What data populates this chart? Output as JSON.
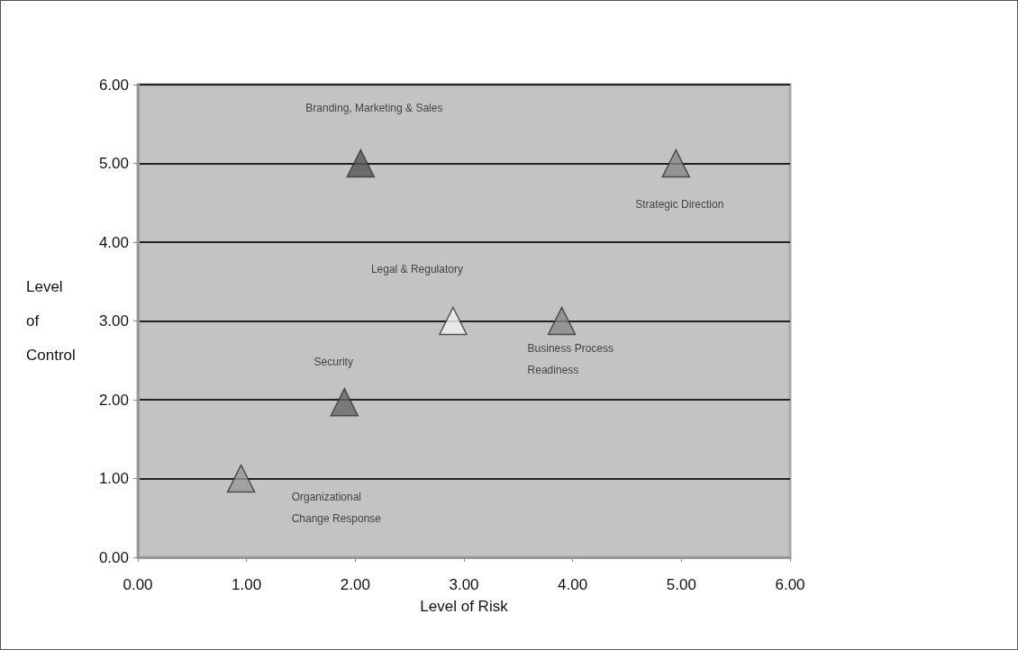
{
  "chart_data": {
    "type": "scatter",
    "xlabel": "Level of Risk",
    "ylabel": "Level of Control",
    "x": [
      2.05,
      4.95,
      2.9,
      3.9,
      1.9,
      0.95
    ],
    "values": [
      5,
      5,
      3,
      3,
      1.97,
      1
    ],
    "colors": [
      "#555555",
      "#888888",
      "#f2f2f2",
      "#888888",
      "#666666",
      "#999999"
    ],
    "marker": "triangle",
    "grid": "y",
    "xlim": [
      0,
      6
    ],
    "ylim": [
      0,
      6
    ],
    "xticks": [
      {
        "value": 0,
        "label": "0.00"
      },
      {
        "value": 1,
        "label": "1.00"
      },
      {
        "value": 2,
        "label": "2.00"
      },
      {
        "value": 3,
        "label": "3.00"
      },
      {
        "value": 4,
        "label": "4.00"
      },
      {
        "value": 5,
        "label": "5.00"
      },
      {
        "value": 6,
        "label": "6.00"
      }
    ],
    "yticks": [
      {
        "value": 0,
        "label": "0.00"
      },
      {
        "value": 1,
        "label": "1.00"
      },
      {
        "value": 2,
        "label": "2.00"
      },
      {
        "value": 3,
        "label": "3.00"
      },
      {
        "value": 4,
        "label": "4.00"
      },
      {
        "value": 5,
        "label": "5.00"
      },
      {
        "value": 6,
        "label": "6.00"
      }
    ],
    "annotations": [
      "Branding, Marketing & Sales",
      "Strategic Direction",
      "Legal & Regulatory",
      "Business Process Readiness",
      "Security",
      "Organizational Change Response"
    ]
  }
}
